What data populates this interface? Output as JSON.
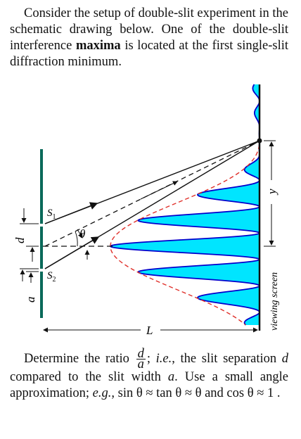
{
  "intro": {
    "part1": "Consider the setup of double-slit experiment in the schematic drawing below. One of the double-slit interference ",
    "bold": "maxima",
    "part2": " is located at the first single-slit diffraction minimum."
  },
  "diagram": {
    "labels": {
      "s1": "S",
      "s1_sub": "1",
      "s2": "S",
      "s2_sub": "2",
      "theta": "θ",
      "d": "d",
      "a": "a",
      "y": "y",
      "L": "L",
      "screen": "viewing screen"
    },
    "colors": {
      "fill": "#00e5ff",
      "curve": "#0000cc",
      "envelope": "#e0302a",
      "slit": "#0a6a5a",
      "ink": "#111111"
    }
  },
  "outro": {
    "t1": "Determine the ratio ",
    "frac_num": "d",
    "frac_den": "a",
    "t2": "; ",
    "ie": "i.e.",
    "t3": ", the slit separation ",
    "d": "d",
    "t4": " compared to the slit width ",
    "a": "a",
    "t5": ". Use a small angle approximation; ",
    "eg": "e.g.",
    "t6": ", sin θ ≈ tan θ ≈ θ and cos θ ≈ 1 ."
  }
}
